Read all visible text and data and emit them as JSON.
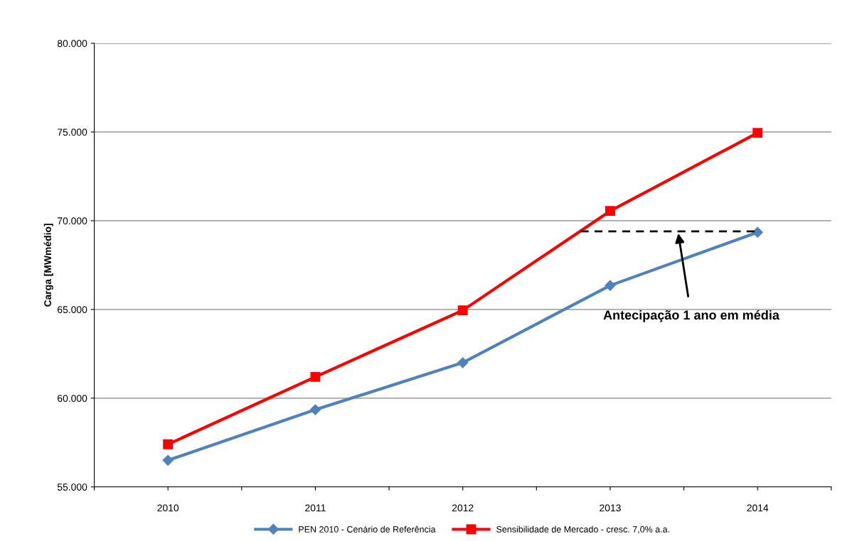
{
  "chart_data": {
    "type": "line",
    "ylabel": "Carga [MWmédio]",
    "x": [
      2010,
      2011,
      2012,
      2013,
      2014
    ],
    "xlim": [
      2009.5,
      2014.5
    ],
    "xticks": [
      {
        "value": 2009.5,
        "label": null
      },
      {
        "value": 2010,
        "label": "2010"
      },
      {
        "value": 2010.5,
        "label": null
      },
      {
        "value": 2011,
        "label": "2011"
      },
      {
        "value": 2011.5,
        "label": null
      },
      {
        "value": 2012,
        "label": "2012"
      },
      {
        "value": 2012.5,
        "label": null
      },
      {
        "value": 2013,
        "label": "2013"
      },
      {
        "value": 2013.5,
        "label": null
      },
      {
        "value": 2014,
        "label": "2014"
      },
      {
        "value": 2014.5,
        "label": null
      }
    ],
    "ylim": [
      55000,
      80000
    ],
    "yticks": [
      {
        "value": 55000,
        "label": "55.000"
      },
      {
        "value": 60000,
        "label": "60.000"
      },
      {
        "value": 65000,
        "label": "65.000"
      },
      {
        "value": 70000,
        "label": "70.000"
      },
      {
        "value": 75000,
        "label": "75.000"
      },
      {
        "value": 80000,
        "label": "80.000"
      }
    ],
    "grid": "y",
    "legend": "bottom",
    "series": [
      {
        "name": "PEN 2010 - Cenário de Referência",
        "color": "#4f81bd",
        "marker": "diamond",
        "values": [
          56500,
          59350,
          62000,
          66350,
          69350
        ]
      },
      {
        "name": "Sensibilidade de Mercado - cresc. 7,0% a.a.",
        "color": "#ff0000",
        "marker": "square",
        "values": [
          57400,
          61200,
          64950,
          70550,
          74950
        ]
      },
      {
        "color": "#000000",
        "marker": "none",
        "line_style": "dashed",
        "x": [
          2012.8,
          2014
        ],
        "values": [
          69400,
          69400
        ]
      }
    ],
    "annotations": [
      "Antecipação 1 ano em média"
    ]
  }
}
